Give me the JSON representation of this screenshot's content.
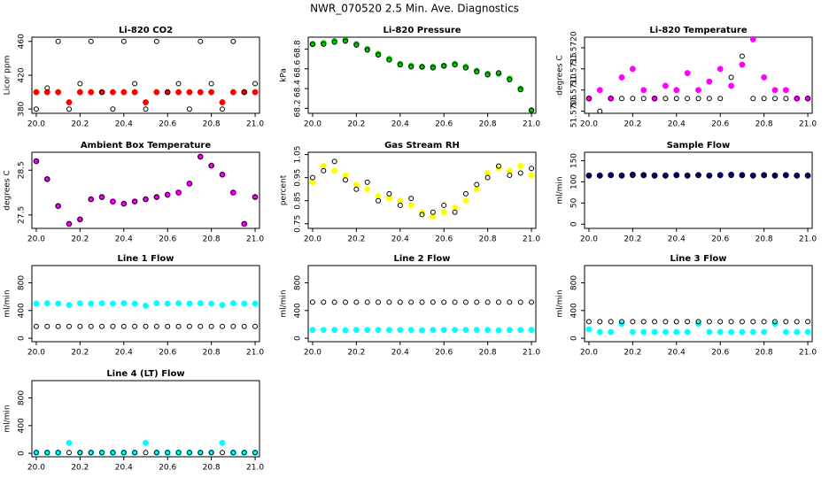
{
  "title": "NWR_070520  2.5 Min. Ave. Diagnostics",
  "chart_data": [
    {
      "type": "scatter",
      "title": "Li-820 CO2",
      "ylabel": "Licor ppm",
      "xlim": [
        19.98,
        21.02
      ],
      "xticks": [
        {
          "value": 20,
          "label": "20.0"
        },
        20.2,
        20.4,
        20.6,
        20.8,
        {
          "value": 21,
          "label": "21.0"
        }
      ],
      "ylim": [
        375,
        465
      ],
      "yticks": [
        380,
        420,
        460
      ],
      "x": [
        20.0,
        20.05,
        20.1,
        20.15,
        20.2,
        20.25,
        20.3,
        20.35,
        20.4,
        20.45,
        20.5,
        20.55,
        20.6,
        20.65,
        20.7,
        20.75,
        20.8,
        20.85,
        20.9,
        20.95,
        21.0
      ],
      "series": [
        {
          "color": "#ff0000",
          "marker": "filled",
          "values": [
            400,
            400,
            400,
            388,
            400,
            400,
            400,
            400,
            400,
            400,
            388,
            400,
            400,
            400,
            400,
            400,
            400,
            388,
            400,
            400,
            400
          ]
        },
        {
          "color": "#000000",
          "marker": "open",
          "values": [
            380,
            405,
            460,
            380,
            410,
            460,
            400,
            380,
            460,
            410,
            380,
            460,
            400,
            410,
            380,
            460,
            410,
            380,
            460,
            400,
            410
          ]
        }
      ]
    },
    {
      "type": "scatter",
      "title": "Li-820 Pressure",
      "ylabel": "kPa",
      "xlim": [
        19.98,
        21.02
      ],
      "xticks": [
        {
          "value": 20,
          "label": "20.0"
        },
        20.2,
        20.4,
        20.6,
        20.8,
        {
          "value": 21,
          "label": "21.0"
        }
      ],
      "ylim": [
        68.15,
        68.92
      ],
      "yticks": [
        68.2,
        68.4,
        68.6,
        68.8
      ],
      "x": [
        20.0,
        20.05,
        20.1,
        20.15,
        20.2,
        20.25,
        20.3,
        20.35,
        20.4,
        20.45,
        20.5,
        20.55,
        20.6,
        20.65,
        20.7,
        20.75,
        20.8,
        20.85,
        20.9,
        20.95,
        21.0
      ],
      "series": [
        {
          "color": "#00cc00",
          "marker": "filled",
          "values": [
            68.85,
            68.86,
            68.88,
            68.89,
            68.85,
            68.8,
            68.75,
            68.7,
            68.65,
            68.63,
            68.62,
            68.62,
            68.63,
            68.65,
            68.62,
            68.58,
            68.55,
            68.55,
            68.5,
            68.4,
            68.18
          ]
        },
        {
          "color": "#000000",
          "marker": "open",
          "values": [
            68.85,
            68.85,
            68.87,
            68.88,
            68.84,
            68.79,
            68.74,
            68.69,
            68.64,
            68.62,
            68.62,
            68.61,
            68.63,
            68.64,
            68.61,
            68.57,
            68.54,
            68.56,
            68.49,
            68.39,
            68.18
          ]
        }
      ]
    },
    {
      "type": "scatter",
      "title": "Li-820 Temperature",
      "ylabel": "degrees C",
      "xlim": [
        19.98,
        21.02
      ],
      "xticks": [
        {
          "value": 20,
          "label": "20.0"
        },
        20.2,
        20.4,
        20.6,
        20.8,
        {
          "value": 21,
          "label": "21.0"
        }
      ],
      "ylim": [
        51.57045,
        51.57225
      ],
      "yticks": [
        51.5705,
        {
          "value": 51.571,
          "label": "51.5710"
        },
        51.5715,
        {
          "value": 51.572,
          "label": "51.5720"
        }
      ],
      "x": [
        20.0,
        20.05,
        20.1,
        20.15,
        20.2,
        20.25,
        20.3,
        20.35,
        20.4,
        20.45,
        20.5,
        20.55,
        20.6,
        20.65,
        20.7,
        20.75,
        20.8,
        20.85,
        20.9,
        20.95,
        21.0
      ],
      "series": [
        {
          "color": "#ff00ff",
          "marker": "filled",
          "values": [
            51.5708,
            51.571,
            51.5708,
            51.5713,
            51.5715,
            51.571,
            51.5708,
            51.5711,
            51.571,
            51.5714,
            51.571,
            51.5712,
            51.5715,
            51.5711,
            51.5716,
            51.5722,
            51.5713,
            51.571,
            51.571,
            51.5708,
            51.5708
          ]
        },
        {
          "color": "#000000",
          "marker": "open",
          "values": [
            51.5708,
            51.5705,
            51.5708,
            51.5708,
            51.5708,
            51.5708,
            51.5708,
            51.5708,
            51.5708,
            51.5708,
            51.5708,
            51.5708,
            51.5708,
            51.5713,
            51.5718,
            51.5708,
            51.5708,
            51.5708,
            51.5708,
            51.5708,
            51.5708
          ]
        }
      ]
    },
    {
      "type": "scatter",
      "title": "Ambient Box Temperature",
      "ylabel": "degrees C",
      "xlim": [
        19.98,
        21.02
      ],
      "xticks": [
        {
          "value": 20,
          "label": "20.0"
        },
        20.2,
        20.4,
        20.6,
        20.8,
        {
          "value": 21,
          "label": "21.0"
        }
      ],
      "ylim": [
        27.2,
        28.9
      ],
      "yticks": [
        27.5,
        28.5
      ],
      "x": [
        20.0,
        20.05,
        20.1,
        20.15,
        20.2,
        20.25,
        20.3,
        20.35,
        20.4,
        20.45,
        20.5,
        20.55,
        20.6,
        20.65,
        20.7,
        20.75,
        20.8,
        20.85,
        20.9,
        20.95,
        21.0
      ],
      "series": [
        {
          "color": "#ff00ff",
          "marker": "filled",
          "values": [
            28.7,
            28.3,
            27.7,
            27.3,
            27.4,
            27.85,
            27.9,
            27.8,
            27.75,
            27.8,
            27.85,
            27.9,
            27.95,
            28.0,
            28.2,
            28.8,
            28.6,
            28.4,
            28.0,
            27.3,
            27.9
          ]
        },
        {
          "color": "#000000",
          "marker": "open",
          "values": [
            28.7,
            28.3,
            27.7,
            27.3,
            27.4,
            27.85,
            27.9,
            27.8,
            27.75,
            27.8,
            27.85,
            27.9,
            27.95,
            28.0,
            28.2,
            28.8,
            28.6,
            28.4,
            28.0,
            27.3,
            27.9
          ]
        }
      ]
    },
    {
      "type": "scatter",
      "title": "Gas Stream RH",
      "ylabel": "percent",
      "xlim": [
        19.98,
        21.02
      ],
      "xticks": [
        {
          "value": 20,
          "label": "20.0"
        },
        20.2,
        20.4,
        20.6,
        20.8,
        {
          "value": 21,
          "label": "21.0"
        }
      ],
      "ylim": [
        0.73,
        1.06
      ],
      "yticks": [
        0.75,
        0.85,
        0.95,
        1.05
      ],
      "x": [
        20.0,
        20.05,
        20.1,
        20.15,
        20.2,
        20.25,
        20.3,
        20.35,
        20.4,
        20.45,
        20.5,
        20.55,
        20.6,
        20.65,
        20.7,
        20.75,
        20.8,
        20.85,
        20.9,
        20.95,
        21.0
      ],
      "series": [
        {
          "color": "#ffff00",
          "marker": "filled",
          "values": [
            0.93,
            1.0,
            0.98,
            0.96,
            0.92,
            0.9,
            0.87,
            0.86,
            0.85,
            0.83,
            0.8,
            0.78,
            0.8,
            0.82,
            0.85,
            0.9,
            0.97,
            0.99,
            0.98,
            1.0,
            0.96
          ]
        },
        {
          "color": "#000000",
          "marker": "open",
          "values": [
            0.95,
            0.98,
            1.02,
            0.94,
            0.9,
            0.93,
            0.85,
            0.88,
            0.83,
            0.86,
            0.79,
            0.8,
            0.83,
            0.8,
            0.88,
            0.92,
            0.95,
            1.0,
            0.96,
            0.97,
            0.99
          ]
        }
      ]
    },
    {
      "type": "scatter",
      "title": "Sample Flow",
      "ylabel": "ml/min",
      "xlim": [
        19.98,
        21.02
      ],
      "xticks": [
        {
          "value": 20,
          "label": "20.0"
        },
        20.2,
        20.4,
        20.6,
        20.8,
        {
          "value": 21,
          "label": "21.0"
        }
      ],
      "ylim": [
        -10,
        170
      ],
      "yticks": [
        0,
        50,
        100,
        150
      ],
      "x": [
        20.0,
        20.05,
        20.1,
        20.15,
        20.2,
        20.25,
        20.3,
        20.35,
        20.4,
        20.45,
        20.5,
        20.55,
        20.6,
        20.65,
        20.7,
        20.75,
        20.8,
        20.85,
        20.9,
        20.95,
        21.0
      ],
      "series": [
        {
          "color": "#000080",
          "marker": "filled",
          "values": [
            115,
            115,
            116,
            115,
            117,
            116,
            115,
            115,
            116,
            115,
            116,
            115,
            116,
            117,
            116,
            115,
            116,
            115,
            116,
            115,
            115
          ]
        },
        {
          "color": "#000000",
          "marker": "open",
          "values": [
            114,
            114,
            115,
            114,
            115,
            115,
            114,
            114,
            115,
            114,
            115,
            114,
            115,
            115,
            115,
            114,
            115,
            114,
            115,
            114,
            114
          ]
        }
      ]
    },
    {
      "type": "scatter",
      "title": "Line 1 Flow",
      "ylabel": "ml/min",
      "xlim": [
        19.98,
        21.02
      ],
      "xticks": [
        {
          "value": 20,
          "label": "20.0"
        },
        20.2,
        20.4,
        20.6,
        20.8,
        {
          "value": 21,
          "label": "21.0"
        }
      ],
      "ylim": [
        -50,
        1050
      ],
      "yticks": [
        0,
        400,
        800
      ],
      "x": [
        20.0,
        20.05,
        20.1,
        20.15,
        20.2,
        20.25,
        20.3,
        20.35,
        20.4,
        20.45,
        20.5,
        20.55,
        20.6,
        20.65,
        20.7,
        20.75,
        20.8,
        20.85,
        20.9,
        20.95,
        21.0
      ],
      "series": [
        {
          "color": "#00ffff",
          "marker": "filled",
          "values": [
            500,
            505,
            500,
            480,
            505,
            500,
            505,
            500,
            505,
            500,
            470,
            505,
            500,
            505,
            500,
            505,
            500,
            480,
            505,
            500,
            500
          ]
        },
        {
          "color": "#000000",
          "marker": "open",
          "values": [
            170,
            170,
            170,
            170,
            170,
            170,
            170,
            170,
            170,
            170,
            170,
            170,
            170,
            170,
            170,
            170,
            170,
            170,
            170,
            170,
            170
          ]
        }
      ]
    },
    {
      "type": "scatter",
      "title": "Line 2 Flow",
      "ylabel": "ml/min",
      "xlim": [
        19.98,
        21.02
      ],
      "xticks": [
        {
          "value": 20,
          "label": "20.0"
        },
        20.2,
        20.4,
        20.6,
        20.8,
        {
          "value": 21,
          "label": "21.0"
        }
      ],
      "ylim": [
        -50,
        1050
      ],
      "yticks": [
        0,
        400,
        800
      ],
      "x": [
        20.0,
        20.05,
        20.1,
        20.15,
        20.2,
        20.25,
        20.3,
        20.35,
        20.4,
        20.45,
        20.5,
        20.55,
        20.6,
        20.65,
        20.7,
        20.75,
        20.8,
        20.85,
        20.9,
        20.95,
        21.0
      ],
      "series": [
        {
          "color": "#00ffff",
          "marker": "filled",
          "values": [
            120,
            120,
            120,
            115,
            120,
            120,
            120,
            120,
            120,
            120,
            115,
            120,
            120,
            120,
            120,
            120,
            120,
            115,
            120,
            120,
            120
          ]
        },
        {
          "color": "#000000",
          "marker": "open",
          "values": [
            520,
            520,
            520,
            520,
            520,
            520,
            520,
            520,
            520,
            520,
            520,
            520,
            520,
            520,
            520,
            520,
            520,
            520,
            520,
            520,
            520
          ]
        }
      ]
    },
    {
      "type": "scatter",
      "title": "Line 3 Flow",
      "ylabel": "ml/min",
      "xlim": [
        19.98,
        21.02
      ],
      "xticks": [
        {
          "value": 20,
          "label": "20.0"
        },
        20.2,
        20.4,
        20.6,
        20.8,
        {
          "value": 21,
          "label": "21.0"
        }
      ],
      "ylim": [
        -50,
        1050
      ],
      "yticks": [
        0,
        400,
        800
      ],
      "x": [
        20.0,
        20.05,
        20.1,
        20.15,
        20.2,
        20.25,
        20.3,
        20.35,
        20.4,
        20.45,
        20.5,
        20.55,
        20.6,
        20.65,
        20.7,
        20.75,
        20.8,
        20.85,
        20.9,
        20.95,
        21.0
      ],
      "series": [
        {
          "color": "#00ffff",
          "marker": "filled",
          "values": [
            130,
            90,
            90,
            210,
            90,
            90,
            90,
            90,
            90,
            90,
            210,
            90,
            90,
            90,
            90,
            90,
            90,
            210,
            90,
            90,
            90
          ]
        },
        {
          "color": "#000000",
          "marker": "open",
          "values": [
            240,
            240,
            240,
            240,
            240,
            240,
            240,
            240,
            240,
            240,
            240,
            240,
            240,
            240,
            240,
            240,
            240,
            240,
            240,
            240,
            240
          ]
        }
      ]
    },
    {
      "type": "scatter",
      "title": "Line 4 (LT) Flow",
      "ylabel": "ml/min",
      "xlim": [
        19.98,
        21.02
      ],
      "xticks": [
        {
          "value": 20,
          "label": "20.0"
        },
        20.2,
        20.4,
        20.6,
        20.8,
        {
          "value": 21,
          "label": "21.0"
        }
      ],
      "ylim": [
        -50,
        1050
      ],
      "yticks": [
        0,
        400,
        800
      ],
      "x": [
        20.0,
        20.05,
        20.1,
        20.15,
        20.2,
        20.25,
        20.3,
        20.35,
        20.4,
        20.45,
        20.5,
        20.55,
        20.6,
        20.65,
        20.7,
        20.75,
        20.8,
        20.85,
        20.9,
        20.95,
        21.0
      ],
      "series": [
        {
          "color": "#00ffff",
          "marker": "filled",
          "values": [
            10,
            10,
            10,
            150,
            10,
            10,
            10,
            10,
            10,
            10,
            150,
            10,
            10,
            10,
            10,
            10,
            10,
            150,
            10,
            10,
            10
          ]
        },
        {
          "color": "#000000",
          "marker": "open",
          "values": [
            10,
            10,
            10,
            10,
            10,
            10,
            10,
            10,
            10,
            10,
            10,
            10,
            10,
            10,
            10,
            10,
            10,
            10,
            10,
            10,
            10
          ]
        }
      ]
    }
  ]
}
